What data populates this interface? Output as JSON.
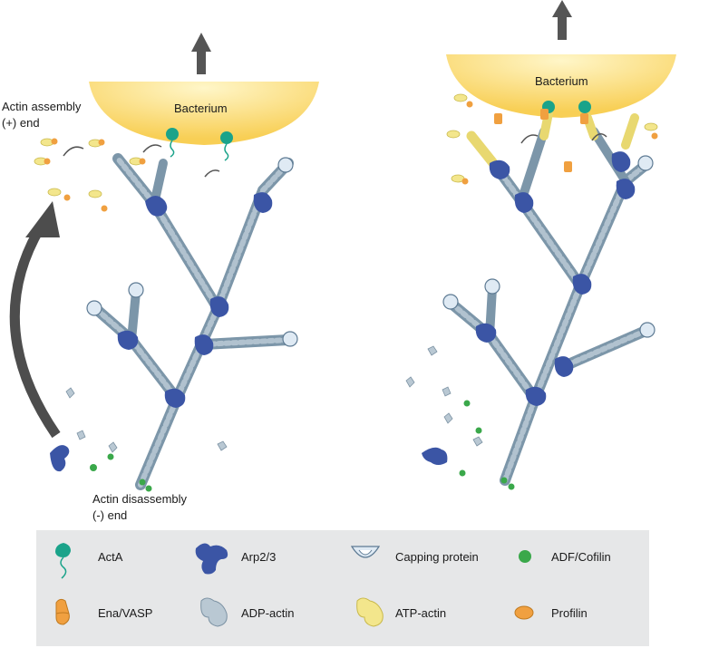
{
  "panels": [
    {
      "bacterium_label": "Bacterium"
    },
    {
      "bacterium_label": "Bacterium"
    }
  ],
  "labels": {
    "assembly_line1": "Actin assembly",
    "assembly_line2": "(+) end",
    "disassembly_line1": "Actin disassembly",
    "disassembly_line2": "(-) end"
  },
  "legend": {
    "items": [
      {
        "label": "ActA",
        "icon": "acta-icon"
      },
      {
        "label": "Arp2/3",
        "icon": "arp23-icon"
      },
      {
        "label": "Capping protein",
        "icon": "capping-protein-icon"
      },
      {
        "label": "ADF/Cofilin",
        "icon": "cofilin-icon"
      },
      {
        "label": "Ena/VASP",
        "icon": "ena-vasp-icon"
      },
      {
        "label": "ADP-actin",
        "icon": "adp-actin-icon"
      },
      {
        "label": "ATP-actin",
        "icon": "atp-actin-icon"
      },
      {
        "label": "Profilin",
        "icon": "profilin-icon"
      }
    ]
  },
  "colors": {
    "bacterium": "#fbd76a",
    "filament": "#8ea5b6",
    "arp23": "#3b55a5",
    "acta": "#1aa38a",
    "cofilin": "#3aa84a",
    "profilin": "#f0a040",
    "atp_actin": "#f3e68c",
    "adp_actin": "#b9c8d3",
    "legend_bg": "#e6e7e8",
    "arrow": "#555555"
  }
}
